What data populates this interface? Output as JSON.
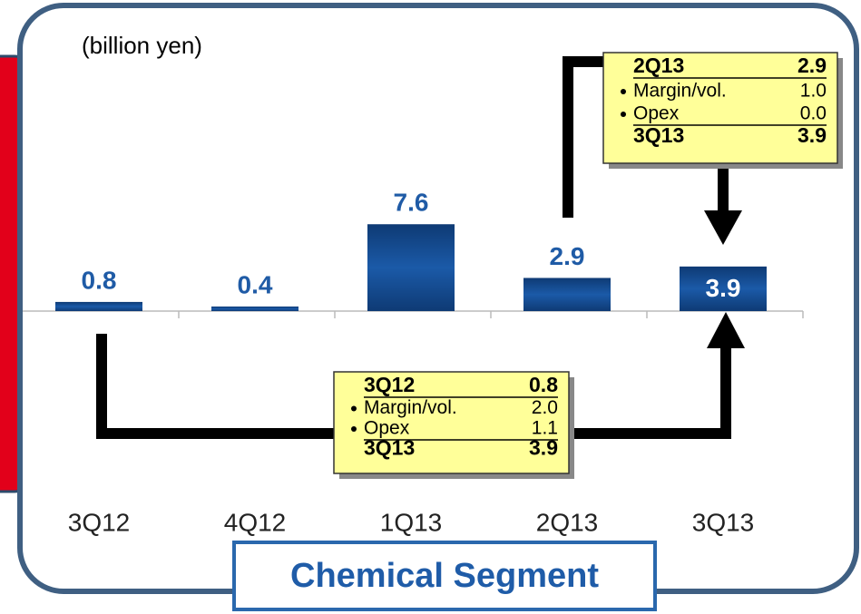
{
  "chart_data": {
    "type": "bar",
    "unit": "(billion yen)",
    "categories": [
      "3Q12",
      "4Q12",
      "1Q13",
      "2Q13",
      "3Q13"
    ],
    "values": [
      0.8,
      0.4,
      7.6,
      2.9,
      3.9
    ],
    "color": "#1b4f93",
    "annotations": [
      {
        "rows": [
          [
            "2Q13",
            "2.9"
          ],
          [
            "Margin/vol.",
            "1.0"
          ],
          [
            "Opex",
            "0.0"
          ],
          [
            "3Q13",
            "3.9"
          ]
        ]
      },
      {
        "rows": [
          [
            "3Q12",
            "0.8"
          ],
          [
            "Margin/vol.",
            "2.0"
          ],
          [
            "Opex",
            "1.1"
          ],
          [
            "3Q13",
            "3.9"
          ]
        ]
      }
    ],
    "segment": "Chemical Segment"
  }
}
